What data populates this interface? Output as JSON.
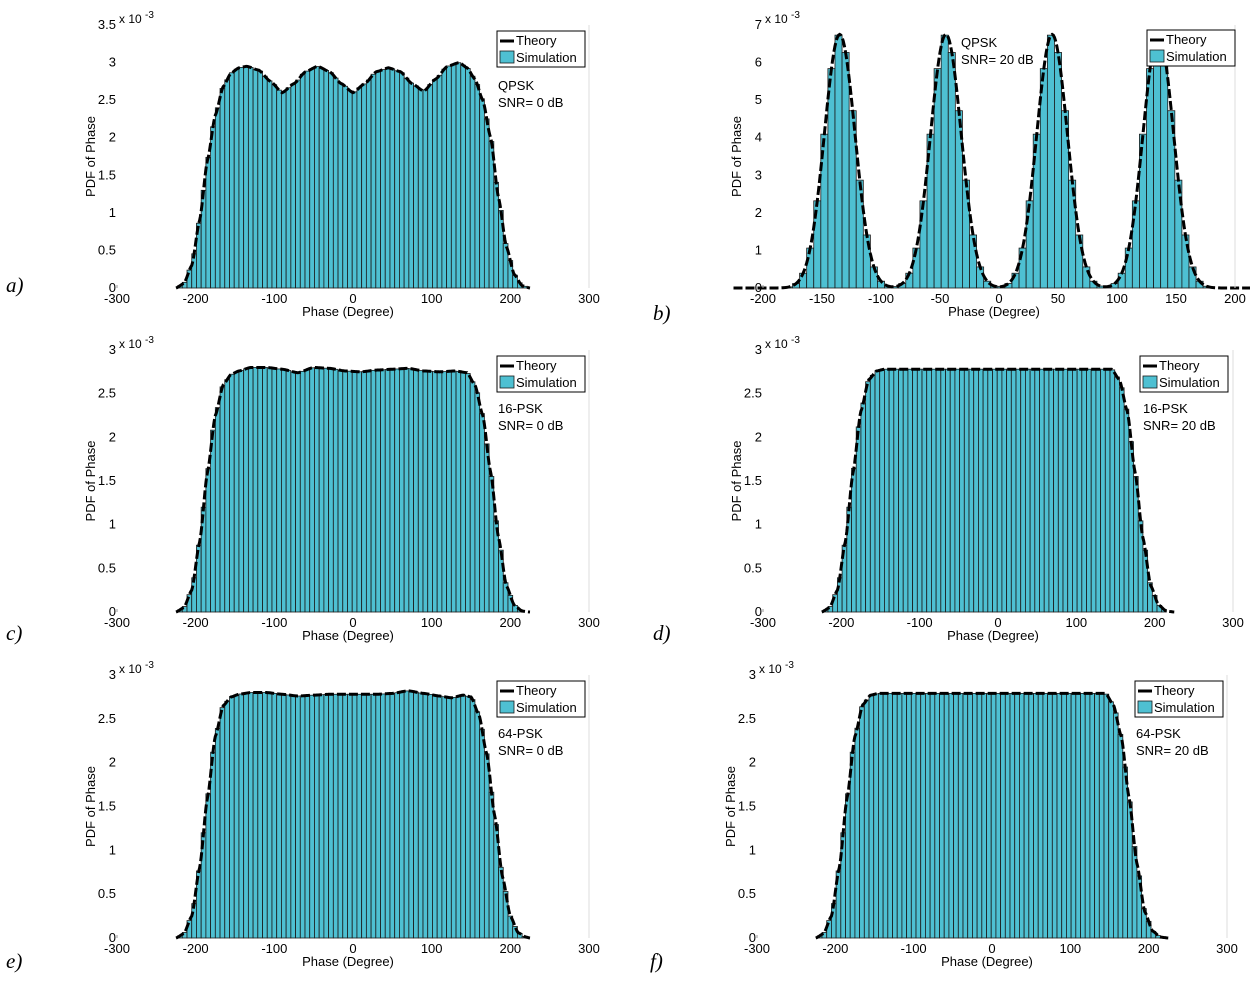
{
  "figure": {
    "layout": "3x2 grid of phase PDF histograms",
    "bar_color": "#4ec0d2",
    "curve_color": "#000000"
  },
  "chart_data": [
    {
      "type": "bar",
      "panel_label": "a)",
      "xlabel": "Phase (Degree)",
      "ylabel": "PDF of Phase",
      "y_exponent": "x 10",
      "y_exponent_power": "-3",
      "xlim": [
        -300,
        300
      ],
      "ylim": [
        0,
        3.5
      ],
      "xticks": [
        "-300",
        "-200",
        "-100",
        "0",
        "100",
        "200",
        "300"
      ],
      "yticks": [
        "0",
        "0.5",
        "1",
        "1.5",
        "2",
        "2.5",
        "3",
        "3.5"
      ],
      "annotation": [
        "QPSK",
        "SNR= 0 dB"
      ],
      "legend": [
        "Theory",
        "Simulation"
      ],
      "legend_position": "top-right",
      "series": [
        {
          "name": "Theory",
          "kind": "line",
          "x": [
            -225,
            -215,
            -205,
            -195,
            -185,
            -175,
            -165,
            -155,
            -145,
            -135,
            -120,
            -105,
            -90,
            -75,
            -60,
            -45,
            -30,
            -15,
            0,
            15,
            30,
            45,
            60,
            75,
            90,
            105,
            120,
            135,
            145,
            155,
            165,
            175,
            185,
            195,
            205,
            215,
            225
          ],
          "y": [
            0.0,
            0.06,
            0.3,
            0.9,
            1.7,
            2.3,
            2.68,
            2.86,
            2.93,
            2.95,
            2.9,
            2.75,
            2.6,
            2.72,
            2.88,
            2.95,
            2.88,
            2.72,
            2.6,
            2.72,
            2.88,
            2.93,
            2.88,
            2.72,
            2.62,
            2.78,
            2.95,
            3.0,
            2.93,
            2.78,
            2.5,
            2.0,
            1.2,
            0.55,
            0.18,
            0.03,
            0.0
          ]
        },
        {
          "name": "Simulation",
          "kind": "histogram"
        }
      ]
    },
    {
      "type": "bar",
      "panel_label": "b)",
      "xlabel": "Phase (Degree)",
      "ylabel": "PDF of Phase",
      "y_exponent": "x 10",
      "y_exponent_power": "-3",
      "xlim": [
        -200,
        200
      ],
      "ylim": [
        0,
        7
      ],
      "xticks": [
        "-200",
        "-150",
        "-100",
        "-50",
        "0",
        "50",
        "100",
        "150",
        "200"
      ],
      "yticks": [
        "0",
        "1",
        "2",
        "3",
        "4",
        "5",
        "6",
        "7"
      ],
      "annotation": [
        "QPSK",
        "SNR= 20 dB"
      ],
      "legend": [
        "Theory",
        "Simulation"
      ],
      "legend_position": "top-right",
      "series": [
        {
          "name": "Theory",
          "kind": "line",
          "peaks": [
            -135,
            -45,
            45,
            135
          ],
          "peak_value": 6.75,
          "sigma_deg": 13
        },
        {
          "name": "Simulation",
          "kind": "histogram"
        }
      ]
    },
    {
      "type": "bar",
      "panel_label": "c)",
      "xlabel": "Phase (Degree)",
      "ylabel": "PDF of Phase",
      "y_exponent": "x 10",
      "y_exponent_power": "-3",
      "xlim": [
        -300,
        300
      ],
      "ylim": [
        0,
        3
      ],
      "xticks": [
        "-300",
        "-200",
        "-100",
        "0",
        "100",
        "200",
        "300"
      ],
      "yticks": [
        "0",
        "0.5",
        "1",
        "1.5",
        "2",
        "2.5",
        "3"
      ],
      "annotation": [
        "16-PSK",
        "SNR= 0 dB"
      ],
      "legend": [
        "Theory",
        "Simulation"
      ],
      "legend_position": "top-right",
      "series": [
        {
          "name": "Theory",
          "kind": "line",
          "x": [
            -225,
            -215,
            -205,
            -195,
            -185,
            -175,
            -165,
            -155,
            -145,
            -130,
            -110,
            -90,
            -70,
            -50,
            -30,
            -10,
            10,
            30,
            50,
            70,
            90,
            110,
            130,
            145,
            155,
            165,
            175,
            185,
            195,
            205,
            215,
            225
          ],
          "y": [
            0.0,
            0.05,
            0.25,
            0.8,
            1.6,
            2.25,
            2.6,
            2.72,
            2.76,
            2.8,
            2.8,
            2.78,
            2.74,
            2.8,
            2.79,
            2.76,
            2.75,
            2.77,
            2.78,
            2.79,
            2.76,
            2.75,
            2.76,
            2.74,
            2.6,
            2.25,
            1.6,
            0.85,
            0.3,
            0.08,
            0.01,
            0.0
          ]
        },
        {
          "name": "Simulation",
          "kind": "histogram"
        }
      ]
    },
    {
      "type": "bar",
      "panel_label": "d)",
      "xlabel": "Phase (Degree)",
      "ylabel": "PDF of Phase",
      "y_exponent": "x 10",
      "y_exponent_power": "-3",
      "xlim": [
        -300,
        300
      ],
      "ylim": [
        0,
        3
      ],
      "xticks": [
        "-300",
        "-200",
        "-100",
        "0",
        "100",
        "200",
        "300"
      ],
      "yticks": [
        "0",
        "0.5",
        "1",
        "1.5",
        "2",
        "2.5",
        "3"
      ],
      "annotation": [
        "16-PSK",
        "SNR= 20 dB"
      ],
      "legend": [
        "Theory",
        "Simulation"
      ],
      "legend_position": "top-right",
      "series": [
        {
          "name": "Theory",
          "kind": "line",
          "x": [
            -225,
            -215,
            -205,
            -195,
            -185,
            -175,
            -165,
            -155,
            -145,
            -130,
            -110,
            -90,
            -70,
            -50,
            -30,
            -10,
            10,
            30,
            50,
            70,
            90,
            110,
            130,
            145,
            155,
            165,
            175,
            185,
            195,
            205,
            215,
            225
          ],
          "y": [
            0.0,
            0.05,
            0.25,
            0.8,
            1.6,
            2.3,
            2.66,
            2.76,
            2.78,
            2.78,
            2.78,
            2.78,
            2.78,
            2.78,
            2.78,
            2.78,
            2.78,
            2.78,
            2.78,
            2.78,
            2.78,
            2.78,
            2.78,
            2.78,
            2.66,
            2.3,
            1.6,
            0.85,
            0.3,
            0.08,
            0.01,
            0.0
          ]
        },
        {
          "name": "Simulation",
          "kind": "histogram"
        }
      ]
    },
    {
      "type": "bar",
      "panel_label": "e)",
      "xlabel": "Phase (Degree)",
      "ylabel": "PDF of Phase",
      "y_exponent": "x 10",
      "y_exponent_power": "-3",
      "xlim": [
        -300,
        300
      ],
      "ylim": [
        0,
        3
      ],
      "xticks": [
        "-300",
        "-200",
        "-100",
        "0",
        "100",
        "200",
        "300"
      ],
      "yticks": [
        "0",
        "0.5",
        "1",
        "1.5",
        "2",
        "2.5",
        "3"
      ],
      "annotation": [
        "64-PSK",
        "SNR= 0 dB"
      ],
      "legend": [
        "Theory",
        "Simulation"
      ],
      "legend_position": "top-right",
      "series": [
        {
          "name": "Theory",
          "kind": "line",
          "x": [
            -225,
            -215,
            -205,
            -195,
            -185,
            -175,
            -165,
            -155,
            -145,
            -130,
            -110,
            -90,
            -70,
            -50,
            -30,
            -10,
            10,
            30,
            50,
            70,
            90,
            110,
            125,
            140,
            150,
            160,
            170,
            180,
            190,
            200,
            210,
            220,
            225
          ],
          "y": [
            0.0,
            0.05,
            0.25,
            0.8,
            1.6,
            2.3,
            2.65,
            2.75,
            2.78,
            2.8,
            2.8,
            2.78,
            2.76,
            2.77,
            2.78,
            2.78,
            2.78,
            2.78,
            2.79,
            2.82,
            2.79,
            2.76,
            2.74,
            2.77,
            2.75,
            2.55,
            2.1,
            1.4,
            0.7,
            0.25,
            0.06,
            0.01,
            0.0
          ]
        },
        {
          "name": "Simulation",
          "kind": "histogram"
        }
      ]
    },
    {
      "type": "bar",
      "panel_label": "f)",
      "xlabel": "Phase (Degree)",
      "ylabel": "PDF of Phase",
      "y_exponent": "x 10",
      "y_exponent_power": "-3",
      "xlim": [
        -300,
        300
      ],
      "ylim": [
        0,
        3
      ],
      "xticks": [
        "-300",
        "-200",
        "-100",
        "0",
        "100",
        "200",
        "300"
      ],
      "yticks": [
        "0",
        "0.5",
        "1",
        "1.5",
        "2",
        "2.5",
        "3"
      ],
      "annotation": [
        "64-PSK",
        "SNR= 20 dB"
      ],
      "legend": [
        "Theory",
        "Simulation"
      ],
      "legend_position": "top-right",
      "series": [
        {
          "name": "Theory",
          "kind": "line",
          "x": [
            -225,
            -215,
            -205,
            -195,
            -185,
            -175,
            -165,
            -155,
            -145,
            -130,
            -110,
            -90,
            -70,
            -50,
            -30,
            -10,
            10,
            30,
            50,
            70,
            90,
            110,
            130,
            145,
            155,
            165,
            175,
            185,
            195,
            205,
            215,
            225
          ],
          "y": [
            0.0,
            0.05,
            0.25,
            0.8,
            1.6,
            2.3,
            2.66,
            2.77,
            2.79,
            2.79,
            2.79,
            2.79,
            2.79,
            2.79,
            2.79,
            2.79,
            2.79,
            2.79,
            2.79,
            2.79,
            2.79,
            2.79,
            2.79,
            2.79,
            2.66,
            2.3,
            1.6,
            0.85,
            0.3,
            0.08,
            0.01,
            0.0
          ]
        },
        {
          "name": "Simulation",
          "kind": "histogram"
        }
      ]
    }
  ]
}
